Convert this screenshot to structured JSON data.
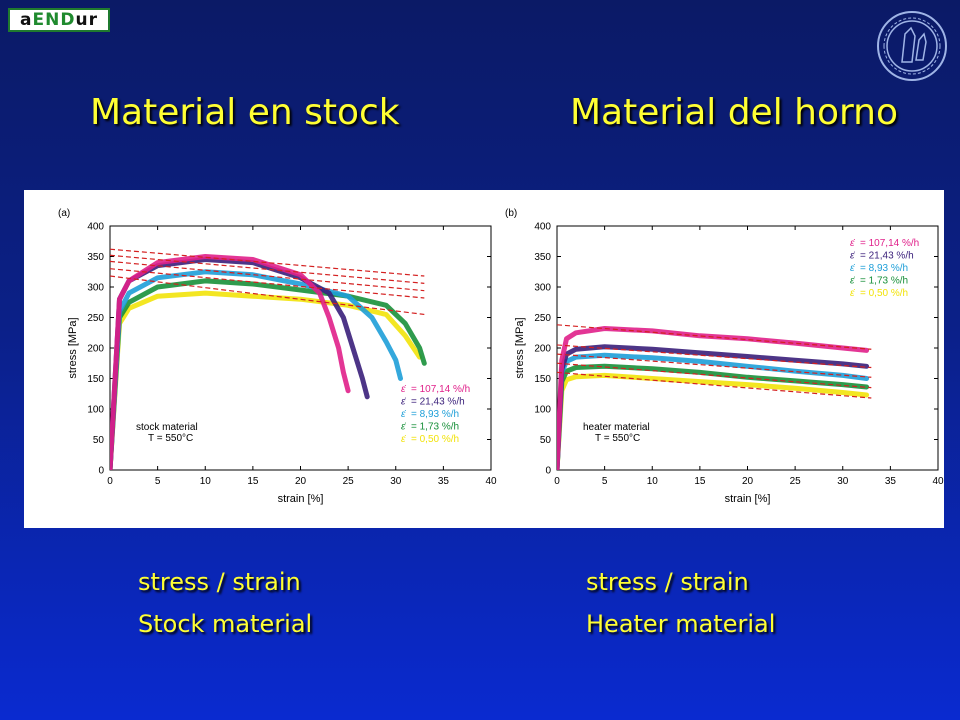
{
  "logo": {
    "text_a": "a",
    "text_b": "END",
    "text_c": "ur"
  },
  "titles": {
    "left": "Material en stock",
    "right": "Material del horno"
  },
  "captions": {
    "left_line1": "stress / strain",
    "left_line2": "Stock material",
    "right_line1": "stress / strain",
    "right_line2": "Heater material"
  },
  "chart_data": [
    {
      "type": "line",
      "panel_label": "(a)",
      "xlabel": "strain [%]",
      "ylabel": "stress [MPa]",
      "xlim": [
        0,
        40
      ],
      "ylim": [
        0,
        400
      ],
      "xticks": [
        "0",
        "5",
        "10",
        "15",
        "20",
        "25",
        "30",
        "35",
        "40"
      ],
      "yticks": [
        "0",
        "50",
        "100",
        "150",
        "200",
        "250",
        "300",
        "350",
        "400"
      ],
      "annotation": [
        "stock material",
        "T = 550°C"
      ],
      "legend_position": "bottom-right",
      "series": [
        {
          "name": "= 107,14 %/h",
          "color": "#e0208a",
          "x": [
            0,
            1,
            2,
            5,
            10,
            15,
            20,
            22,
            23,
            24,
            24.5,
            25
          ],
          "y": [
            0,
            280,
            310,
            340,
            350,
            345,
            320,
            290,
            250,
            200,
            160,
            130
          ]
        },
        {
          "name": "= 21,43 %/h",
          "color": "#3a1f7a",
          "x": [
            0,
            1,
            2,
            5,
            10,
            15,
            20,
            23,
            24.5,
            25.5,
            26.5,
            27
          ],
          "y": [
            0,
            280,
            310,
            335,
            345,
            340,
            315,
            290,
            250,
            200,
            150,
            120
          ]
        },
        {
          "name": "= 8,93 %/h",
          "color": "#1e9fd8",
          "x": [
            0,
            1,
            2,
            5,
            10,
            15,
            20,
            25,
            27.5,
            29,
            30,
            30.5
          ],
          "y": [
            0,
            260,
            290,
            315,
            325,
            320,
            305,
            285,
            250,
            210,
            180,
            150
          ]
        },
        {
          "name": "= 1,73 %/h",
          "color": "#18903a",
          "x": [
            0,
            1,
            2,
            5,
            10,
            15,
            20,
            25,
            29,
            31,
            32.5,
            33
          ],
          "y": [
            0,
            250,
            275,
            300,
            310,
            305,
            295,
            285,
            270,
            240,
            200,
            175
          ]
        },
        {
          "name": "= 0,50 %/h",
          "color": "#f2e30a",
          "x": [
            0,
            1,
            2,
            5,
            10,
            15,
            20,
            25,
            29,
            31,
            32.5
          ],
          "y": [
            0,
            240,
            265,
            285,
            290,
            285,
            280,
            270,
            255,
            220,
            185
          ]
        }
      ],
      "fit_lines": [
        {
          "x": [
            0,
            33
          ],
          "y": [
            362,
            318
          ]
        },
        {
          "x": [
            0,
            33
          ],
          "y": [
            352,
            306
          ]
        },
        {
          "x": [
            0,
            33
          ],
          "y": [
            342,
            294
          ]
        },
        {
          "x": [
            0,
            33
          ],
          "y": [
            330,
            282
          ]
        },
        {
          "x": [
            0,
            33
          ],
          "y": [
            318,
            255
          ]
        }
      ]
    },
    {
      "type": "line",
      "panel_label": "(b)",
      "xlabel": "strain [%]",
      "ylabel": "stress [MPa]",
      "xlim": [
        0,
        40
      ],
      "ylim": [
        0,
        400
      ],
      "xticks": [
        "0",
        "5",
        "10",
        "15",
        "20",
        "25",
        "30",
        "35",
        "40"
      ],
      "yticks": [
        "0",
        "50",
        "100",
        "150",
        "200",
        "250",
        "300",
        "350",
        "400"
      ],
      "annotation": [
        "heater material",
        "T = 550°C"
      ],
      "legend_position": "top-right",
      "series": [
        {
          "name": "= 107,14 %/h",
          "color": "#e0208a",
          "x": [
            0,
            0.5,
            1,
            2,
            5,
            10,
            15,
            20,
            25,
            30,
            32.5
          ],
          "y": [
            0,
            180,
            215,
            225,
            232,
            228,
            220,
            215,
            208,
            200,
            196
          ]
        },
        {
          "name": "= 21,43 %/h",
          "color": "#3a1f7a",
          "x": [
            0,
            0.5,
            1,
            2,
            5,
            10,
            15,
            20,
            25,
            30,
            32.5
          ],
          "y": [
            0,
            165,
            190,
            198,
            202,
            198,
            192,
            186,
            180,
            174,
            170
          ]
        },
        {
          "name": "= 8,93 %/h",
          "color": "#1e9fd8",
          "x": [
            0,
            0.5,
            1,
            2,
            5,
            10,
            15,
            20,
            25,
            30,
            32.5
          ],
          "y": [
            0,
            160,
            178,
            185,
            188,
            184,
            178,
            170,
            162,
            155,
            150
          ]
        },
        {
          "name": "= 1,73 %/h",
          "color": "#18903a",
          "x": [
            0,
            0.5,
            1,
            2,
            5,
            10,
            15,
            20,
            25,
            30,
            32.5
          ],
          "y": [
            0,
            145,
            162,
            168,
            170,
            166,
            160,
            152,
            146,
            140,
            136
          ]
        },
        {
          "name": "= 0,50 %/h",
          "color": "#f2e30a",
          "x": [
            0,
            0.5,
            1,
            2,
            5,
            10,
            15,
            20,
            25,
            30,
            32.5
          ],
          "y": [
            0,
            130,
            148,
            153,
            155,
            150,
            145,
            140,
            134,
            127,
            123
          ]
        }
      ],
      "fit_lines": [
        {
          "x": [
            0,
            33
          ],
          "y": [
            238,
            198
          ]
        },
        {
          "x": [
            0,
            33
          ],
          "y": [
            205,
            168
          ]
        },
        {
          "x": [
            0,
            33
          ],
          "y": [
            190,
            152
          ]
        },
        {
          "x": [
            0,
            33
          ],
          "y": [
            175,
            135
          ]
        },
        {
          "x": [
            0,
            33
          ],
          "y": [
            160,
            118
          ]
        }
      ]
    }
  ]
}
